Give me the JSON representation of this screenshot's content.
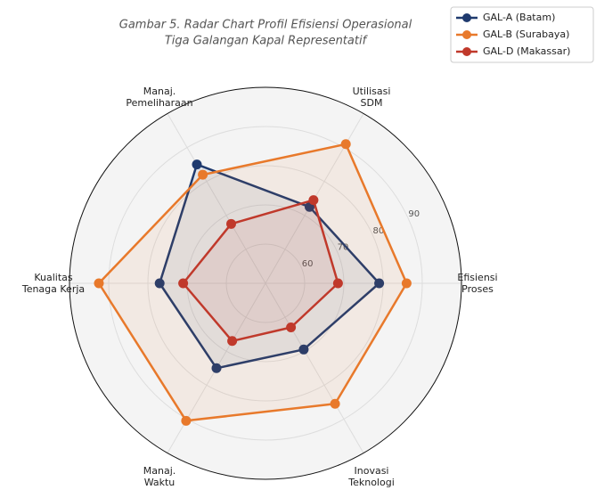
{
  "chart_data": {
    "type": "radar",
    "title": [
      "Gambar 5. Radar Chart Profil Efisiensi Operasional",
      "Tiga Galangan Kapal Representatif"
    ],
    "categories": [
      [
        "Efisiensi",
        "Proses"
      ],
      [
        "Utilisasi",
        "SDM"
      ],
      [
        "Manaj.",
        "Pemeliharaan"
      ],
      [
        "Kualitas",
        "Tenaga Kerja"
      ],
      [
        "Manaj.",
        "Waktu"
      ],
      [
        "Inovasi",
        "Teknologi"
      ]
    ],
    "series": [
      {
        "name": "GAL-A (Batam)",
        "color": "#1f3a6e",
        "values": [
          79,
          72.5,
          85,
          77,
          75,
          69.5
        ]
      },
      {
        "name": "GAL-B (Surabaya)",
        "color": "#e8792b",
        "values": [
          86,
          91,
          82,
          92.5,
          90.5,
          85.5
        ]
      },
      {
        "name": "GAL-D (Makassar)",
        "color": "#c0392b",
        "values": [
          68.5,
          74.5,
          67.5,
          71,
          67,
          63
        ]
      }
    ],
    "ylim": [
      50,
      100
    ],
    "yticks": [
      60,
      70,
      80,
      90
    ],
    "grid": true,
    "legend": "upper right"
  }
}
